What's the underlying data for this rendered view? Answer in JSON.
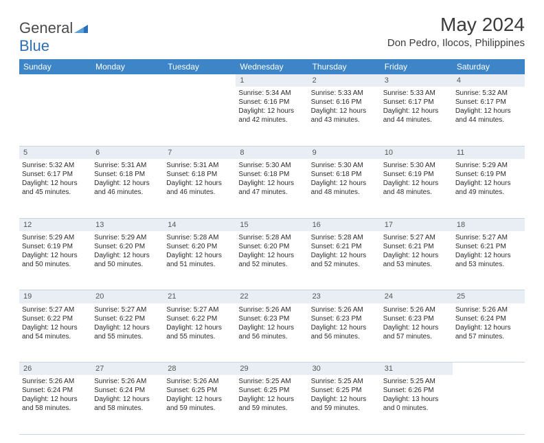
{
  "brand": {
    "general": "General",
    "blue": "Blue"
  },
  "title": "May 2024",
  "location": "Don Pedro, Ilocos, Philippines",
  "colors": {
    "header_bg": "#3d85c6",
    "header_fg": "#ffffff",
    "daynum_bg": "#e8eef3",
    "divider": "#c9d4df",
    "text": "#2a2a2a",
    "brand_gray": "#4a4a4a",
    "brand_blue": "#2d6fb6"
  },
  "weekdays": [
    "Sunday",
    "Monday",
    "Tuesday",
    "Wednesday",
    "Thursday",
    "Friday",
    "Saturday"
  ],
  "weeks": [
    {
      "nums": [
        "",
        "",
        "",
        "1",
        "2",
        "3",
        "4"
      ],
      "cells": [
        null,
        null,
        null,
        {
          "sunrise": "Sunrise: 5:34 AM",
          "sunset": "Sunset: 6:16 PM",
          "day1": "Daylight: 12 hours",
          "day2": "and 42 minutes."
        },
        {
          "sunrise": "Sunrise: 5:33 AM",
          "sunset": "Sunset: 6:16 PM",
          "day1": "Daylight: 12 hours",
          "day2": "and 43 minutes."
        },
        {
          "sunrise": "Sunrise: 5:33 AM",
          "sunset": "Sunset: 6:17 PM",
          "day1": "Daylight: 12 hours",
          "day2": "and 44 minutes."
        },
        {
          "sunrise": "Sunrise: 5:32 AM",
          "sunset": "Sunset: 6:17 PM",
          "day1": "Daylight: 12 hours",
          "day2": "and 44 minutes."
        }
      ]
    },
    {
      "nums": [
        "5",
        "6",
        "7",
        "8",
        "9",
        "10",
        "11"
      ],
      "cells": [
        {
          "sunrise": "Sunrise: 5:32 AM",
          "sunset": "Sunset: 6:17 PM",
          "day1": "Daylight: 12 hours",
          "day2": "and 45 minutes."
        },
        {
          "sunrise": "Sunrise: 5:31 AM",
          "sunset": "Sunset: 6:18 PM",
          "day1": "Daylight: 12 hours",
          "day2": "and 46 minutes."
        },
        {
          "sunrise": "Sunrise: 5:31 AM",
          "sunset": "Sunset: 6:18 PM",
          "day1": "Daylight: 12 hours",
          "day2": "and 46 minutes."
        },
        {
          "sunrise": "Sunrise: 5:30 AM",
          "sunset": "Sunset: 6:18 PM",
          "day1": "Daylight: 12 hours",
          "day2": "and 47 minutes."
        },
        {
          "sunrise": "Sunrise: 5:30 AM",
          "sunset": "Sunset: 6:18 PM",
          "day1": "Daylight: 12 hours",
          "day2": "and 48 minutes."
        },
        {
          "sunrise": "Sunrise: 5:30 AM",
          "sunset": "Sunset: 6:19 PM",
          "day1": "Daylight: 12 hours",
          "day2": "and 48 minutes."
        },
        {
          "sunrise": "Sunrise: 5:29 AM",
          "sunset": "Sunset: 6:19 PM",
          "day1": "Daylight: 12 hours",
          "day2": "and 49 minutes."
        }
      ]
    },
    {
      "nums": [
        "12",
        "13",
        "14",
        "15",
        "16",
        "17",
        "18"
      ],
      "cells": [
        {
          "sunrise": "Sunrise: 5:29 AM",
          "sunset": "Sunset: 6:19 PM",
          "day1": "Daylight: 12 hours",
          "day2": "and 50 minutes."
        },
        {
          "sunrise": "Sunrise: 5:29 AM",
          "sunset": "Sunset: 6:20 PM",
          "day1": "Daylight: 12 hours",
          "day2": "and 50 minutes."
        },
        {
          "sunrise": "Sunrise: 5:28 AM",
          "sunset": "Sunset: 6:20 PM",
          "day1": "Daylight: 12 hours",
          "day2": "and 51 minutes."
        },
        {
          "sunrise": "Sunrise: 5:28 AM",
          "sunset": "Sunset: 6:20 PM",
          "day1": "Daylight: 12 hours",
          "day2": "and 52 minutes."
        },
        {
          "sunrise": "Sunrise: 5:28 AM",
          "sunset": "Sunset: 6:21 PM",
          "day1": "Daylight: 12 hours",
          "day2": "and 52 minutes."
        },
        {
          "sunrise": "Sunrise: 5:27 AM",
          "sunset": "Sunset: 6:21 PM",
          "day1": "Daylight: 12 hours",
          "day2": "and 53 minutes."
        },
        {
          "sunrise": "Sunrise: 5:27 AM",
          "sunset": "Sunset: 6:21 PM",
          "day1": "Daylight: 12 hours",
          "day2": "and 53 minutes."
        }
      ]
    },
    {
      "nums": [
        "19",
        "20",
        "21",
        "22",
        "23",
        "24",
        "25"
      ],
      "cells": [
        {
          "sunrise": "Sunrise: 5:27 AM",
          "sunset": "Sunset: 6:22 PM",
          "day1": "Daylight: 12 hours",
          "day2": "and 54 minutes."
        },
        {
          "sunrise": "Sunrise: 5:27 AM",
          "sunset": "Sunset: 6:22 PM",
          "day1": "Daylight: 12 hours",
          "day2": "and 55 minutes."
        },
        {
          "sunrise": "Sunrise: 5:27 AM",
          "sunset": "Sunset: 6:22 PM",
          "day1": "Daylight: 12 hours",
          "day2": "and 55 minutes."
        },
        {
          "sunrise": "Sunrise: 5:26 AM",
          "sunset": "Sunset: 6:23 PM",
          "day1": "Daylight: 12 hours",
          "day2": "and 56 minutes."
        },
        {
          "sunrise": "Sunrise: 5:26 AM",
          "sunset": "Sunset: 6:23 PM",
          "day1": "Daylight: 12 hours",
          "day2": "and 56 minutes."
        },
        {
          "sunrise": "Sunrise: 5:26 AM",
          "sunset": "Sunset: 6:23 PM",
          "day1": "Daylight: 12 hours",
          "day2": "and 57 minutes."
        },
        {
          "sunrise": "Sunrise: 5:26 AM",
          "sunset": "Sunset: 6:24 PM",
          "day1": "Daylight: 12 hours",
          "day2": "and 57 minutes."
        }
      ]
    },
    {
      "nums": [
        "26",
        "27",
        "28",
        "29",
        "30",
        "31",
        ""
      ],
      "cells": [
        {
          "sunrise": "Sunrise: 5:26 AM",
          "sunset": "Sunset: 6:24 PM",
          "day1": "Daylight: 12 hours",
          "day2": "and 58 minutes."
        },
        {
          "sunrise": "Sunrise: 5:26 AM",
          "sunset": "Sunset: 6:24 PM",
          "day1": "Daylight: 12 hours",
          "day2": "and 58 minutes."
        },
        {
          "sunrise": "Sunrise: 5:26 AM",
          "sunset": "Sunset: 6:25 PM",
          "day1": "Daylight: 12 hours",
          "day2": "and 59 minutes."
        },
        {
          "sunrise": "Sunrise: 5:25 AM",
          "sunset": "Sunset: 6:25 PM",
          "day1": "Daylight: 12 hours",
          "day2": "and 59 minutes."
        },
        {
          "sunrise": "Sunrise: 5:25 AM",
          "sunset": "Sunset: 6:25 PM",
          "day1": "Daylight: 12 hours",
          "day2": "and 59 minutes."
        },
        {
          "sunrise": "Sunrise: 5:25 AM",
          "sunset": "Sunset: 6:26 PM",
          "day1": "Daylight: 13 hours",
          "day2": "and 0 minutes."
        },
        null
      ]
    }
  ]
}
